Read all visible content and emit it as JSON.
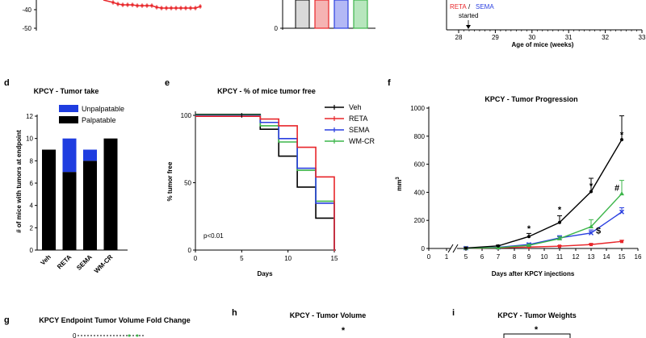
{
  "colors": {
    "veh": "#000000",
    "reta": "#e8262a",
    "sema": "#2a3fe0",
    "wmcr": "#3cb54a",
    "unpalp": "#1f3de0",
    "palp": "#000000"
  },
  "top": {
    "a_ticks": [
      "-40",
      "-50"
    ],
    "b_ticks": [
      "0"
    ],
    "c_label_reta": "RETA",
    "c_label_sep": " / ",
    "c_label_sema": "SEMA",
    "c_label_started": "started",
    "c_ticks": [
      "28",
      "29",
      "30",
      "31",
      "32",
      "33"
    ],
    "c_xlabel": "Age of mice (weeks)"
  },
  "panels": {
    "d": {
      "letter": "d"
    },
    "e": {
      "letter": "e",
      "annotation": "p<0.01"
    },
    "f": {
      "letter": "f",
      "sup": "3"
    },
    "g": {
      "letter": "g",
      "title": "KPCY Endpoint Tumor Volume Fold Change",
      "partial_tick": "0"
    },
    "h": {
      "letter": "h",
      "title": "KPCY - Tumor Volume",
      "star": "*"
    },
    "i": {
      "letter": "i",
      "title": "KPCY - Tumor Weights",
      "star": "*"
    }
  },
  "chart_data": [
    {
      "id": "d",
      "type": "bar",
      "title": "KPCY - Tumor take",
      "ylabel": "# of mice with tumors at endpoint",
      "xlabel": "",
      "ylim": [
        0,
        12
      ],
      "yticks": [
        "0",
        "2",
        "4",
        "6",
        "8",
        "10",
        "12"
      ],
      "categories": [
        "Veh",
        "RETA",
        "SEMA",
        "WM-CR"
      ],
      "series": [
        {
          "name": "Palpatable",
          "values": [
            9,
            7,
            8,
            10
          ]
        },
        {
          "name": "Unpalpatable",
          "values": [
            0,
            3,
            1,
            0
          ]
        }
      ],
      "legend": [
        "Unpalpatable",
        "Palpatable"
      ]
    },
    {
      "id": "e",
      "type": "line",
      "title": "KPCY - % of mice tumor free",
      "ylabel": "% tumor free",
      "xlabel": "Days",
      "xlim": [
        0,
        15
      ],
      "ylim": [
        0,
        100
      ],
      "xticks": [
        "0",
        "5",
        "10",
        "15"
      ],
      "yticks": [
        "0",
        "50",
        "100"
      ],
      "legend": [
        "Veh",
        "RETA",
        "SEMA",
        "WM-CR"
      ],
      "series": [
        {
          "name": "Veh",
          "steps": [
            [
              0,
              100
            ],
            [
              5,
              100
            ],
            [
              7,
              89
            ],
            [
              9,
              69
            ],
            [
              11,
              46
            ],
            [
              13,
              23
            ],
            [
              15,
              0
            ]
          ]
        },
        {
          "name": "RETA",
          "steps": [
            [
              0,
              100
            ],
            [
              5,
              100
            ],
            [
              7,
              98
            ],
            [
              9,
              93
            ],
            [
              11,
              77
            ],
            [
              13,
              55
            ],
            [
              15,
              0
            ]
          ]
        },
        {
          "name": "SEMA",
          "steps": [
            [
              0,
              100
            ],
            [
              5,
              100
            ],
            [
              7,
              95
            ],
            [
              9,
              83
            ],
            [
              11,
              61
            ],
            [
              13,
              35
            ],
            [
              15,
              0
            ]
          ]
        },
        {
          "name": "WM-CR",
          "steps": [
            [
              0,
              100
            ],
            [
              5,
              100
            ],
            [
              7,
              92
            ],
            [
              9,
              80
            ],
            [
              11,
              59
            ],
            [
              13,
              36
            ],
            [
              15,
              0
            ]
          ]
        }
      ]
    },
    {
      "id": "f",
      "type": "line",
      "title": "KPCY - Tumor Progression",
      "ylabel": "mm",
      "xlabel": "Days after KPCY injections",
      "ylim": [
        0,
        1000
      ],
      "yticks": [
        "0",
        "200",
        "400",
        "600",
        "800",
        "1000"
      ],
      "xticks": [
        "0",
        "1",
        "5",
        "6",
        "7",
        "8",
        "9",
        "10",
        "11",
        "12",
        "13",
        "14",
        "15",
        "16"
      ],
      "x": [
        5,
        7,
        9,
        11,
        13,
        15
      ],
      "series": [
        {
          "name": "Veh",
          "values": [
            3,
            18,
            85,
            185,
            405,
            775
          ],
          "err": [
            3,
            6,
            22,
            48,
            95,
            170
          ]
        },
        {
          "name": "RETA",
          "values": [
            2,
            5,
            10,
            16,
            28,
            50
          ],
          "err": [
            1,
            2,
            3,
            4,
            6,
            8
          ]
        },
        {
          "name": "SEMA",
          "values": [
            2,
            8,
            28,
            75,
            110,
            260
          ],
          "err": [
            2,
            4,
            10,
            16,
            22,
            30
          ]
        },
        {
          "name": "WM-CR",
          "values": [
            2,
            6,
            22,
            70,
            155,
            390
          ],
          "err": [
            2,
            4,
            8,
            14,
            50,
            95
          ]
        }
      ],
      "annotations": [
        {
          "x": 9,
          "y": 120,
          "text": "*"
        },
        {
          "x": 11,
          "y": 255,
          "text": "*"
        },
        {
          "x": 13,
          "y": 425,
          "text": "*"
        },
        {
          "x": 15,
          "y": 790,
          "text": "*"
        },
        {
          "x": 15,
          "y": 410,
          "text": "#"
        },
        {
          "x": 13,
          "y": 105,
          "text": "$"
        }
      ]
    }
  ]
}
